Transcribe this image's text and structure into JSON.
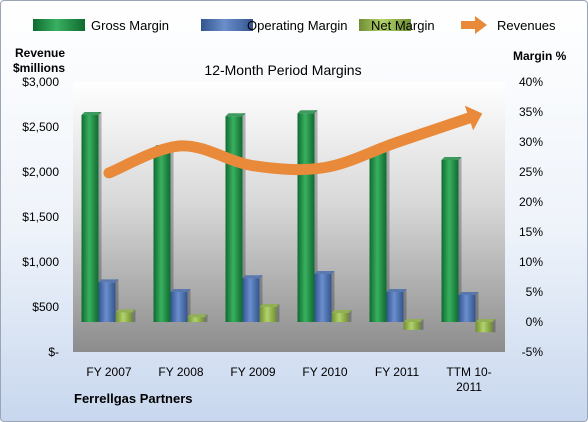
{
  "chart_data": {
    "type": "bar",
    "title": "12-Month Period Margins",
    "company": "Ferrellgas Partners",
    "left_axis": {
      "label_line1": "Revenue",
      "label_line2": "$millions",
      "ticks": [
        "$-",
        "$500",
        "$1,000",
        "$1,500",
        "$2,000",
        "$2,500",
        "$3,000"
      ],
      "range": [
        0,
        3000
      ]
    },
    "right_axis": {
      "label": "Margin %",
      "ticks": [
        "-5%",
        "0%",
        "5%",
        "10%",
        "15%",
        "20%",
        "25%",
        "30%",
        "35%",
        "40%"
      ],
      "range": [
        -5,
        40
      ]
    },
    "categories": [
      "FY 2007",
      "FY 2008",
      "FY 2009",
      "FY 2010",
      "FY 2011",
      "TTM 10-2011"
    ],
    "category_lines": [
      [
        "FY 2007"
      ],
      [
        "FY 2008"
      ],
      [
        "FY 2009"
      ],
      [
        "FY 2010"
      ],
      [
        "FY 2011"
      ],
      [
        "TTM 10-",
        "2011"
      ]
    ],
    "series": [
      {
        "name": "Gross Margin",
        "axis": "right",
        "kind": "bar",
        "color": "#1e8a45",
        "values": [
          34.5,
          29.0,
          34.3,
          34.8,
          28.5,
          27.0
        ]
      },
      {
        "name": "Operating Margin",
        "axis": "right",
        "kind": "bar",
        "color": "#4a6fb0",
        "values": [
          6.6,
          5.0,
          7.3,
          8.0,
          5.0,
          4.5
        ]
      },
      {
        "name": "Net Margin",
        "axis": "right",
        "kind": "bar",
        "color": "#8fb44a",
        "values": [
          1.6,
          0.8,
          2.5,
          1.5,
          -1.3,
          -1.7
        ]
      },
      {
        "name": "Revenues",
        "axis": "left",
        "kind": "arrow-line",
        "color": "#e98a3a",
        "values": [
          1990,
          2290,
          2070,
          2050,
          2330,
          2600
        ]
      }
    ],
    "legend_position": "top",
    "grid": false
  }
}
